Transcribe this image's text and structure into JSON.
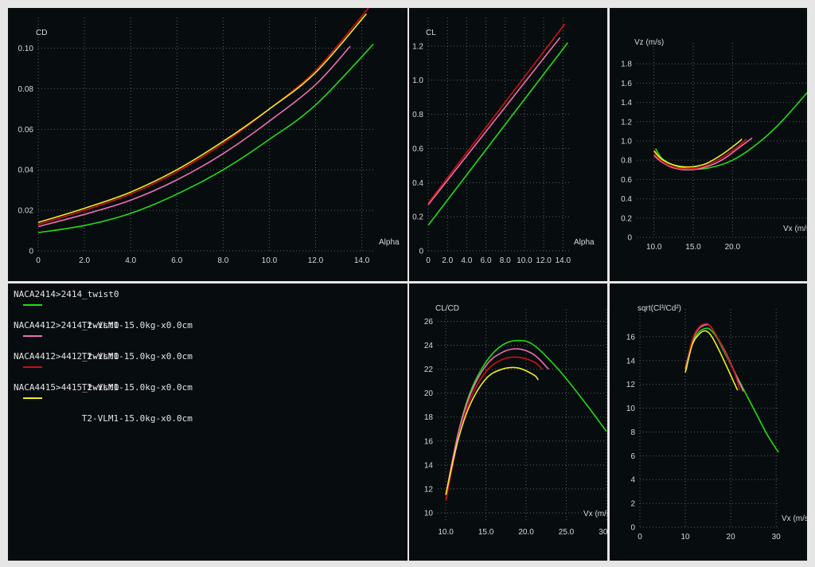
{
  "legend": {
    "items": [
      {
        "title": "NACA2414>2414_twist0",
        "label": "T2-VLM1-15.0kg-x0.0cm",
        "color": "#22dd11"
      },
      {
        "title": "NACA4412>2414_twist0",
        "label": "T2-VLM1-15.0kg-x0.0cm",
        "color": "#ee6fb0"
      },
      {
        "title": "NACA4412>4412_twist0",
        "label": "T2-VLM1-15.0kg-x0.0cm",
        "color": "#cc1111"
      },
      {
        "title": "NACA4415>4415_twist0",
        "label": "T2-VLM1-15.0kg-x0.0cm",
        "color": "#eeee22"
      }
    ]
  },
  "chart_data": [
    {
      "id": "cd",
      "type": "line",
      "title": "",
      "xlabel": "Alpha",
      "ylabel": "CD",
      "xlim": [
        0,
        14.6
      ],
      "ylim": [
        0,
        0.112
      ],
      "xticks": [
        "0",
        "2.0",
        "4.0",
        "6.0",
        "8.0",
        "10.0",
        "12.0",
        "14.0"
      ],
      "xtick_values": [
        0,
        2,
        4,
        6,
        8,
        10,
        12,
        14
      ],
      "yticks": [
        "0",
        "0.02",
        "0.04",
        "0.06",
        "0.08",
        "0.10"
      ],
      "ytick_values": [
        0,
        0.02,
        0.04,
        0.06,
        0.08,
        0.1
      ],
      "grid": true,
      "series": [
        {
          "color": "#22dd11",
          "x": [
            0,
            2,
            4,
            6,
            8,
            10,
            12,
            14.5
          ],
          "y": [
            0.009,
            0.0125,
            0.0185,
            0.028,
            0.04,
            0.055,
            0.072,
            0.102
          ]
        },
        {
          "color": "#ee6fb0",
          "x": [
            0,
            2,
            4,
            6,
            8,
            10,
            12,
            13.5
          ],
          "y": [
            0.012,
            0.018,
            0.025,
            0.035,
            0.048,
            0.064,
            0.082,
            0.101
          ]
        },
        {
          "color": "#cc1111",
          "x": [
            0,
            2,
            4,
            6,
            8,
            10,
            12,
            14.3
          ],
          "y": [
            0.013,
            0.02,
            0.028,
            0.039,
            0.053,
            0.07,
            0.089,
            0.12
          ]
        },
        {
          "color": "#eeee22",
          "x": [
            0,
            2,
            4,
            6,
            8,
            10,
            12,
            14.2
          ],
          "y": [
            0.014,
            0.021,
            0.029,
            0.04,
            0.054,
            0.07,
            0.088,
            0.117
          ]
        }
      ]
    },
    {
      "id": "cl",
      "type": "line",
      "title": "",
      "xlabel": "Alpha",
      "ylabel": "CL",
      "xlim": [
        0,
        14.8
      ],
      "ylim": [
        0,
        1.33
      ],
      "xticks": [
        "0",
        "2.0",
        "4.0",
        "6.0",
        "8.0",
        "10.0",
        "12.0",
        "14.0"
      ],
      "xtick_values": [
        0,
        2,
        4,
        6,
        8,
        10,
        12,
        14
      ],
      "yticks": [
        "0",
        "0.2",
        "0.4",
        "0.6",
        "0.8",
        "1.0",
        "1.2"
      ],
      "ytick_values": [
        0,
        0.2,
        0.4,
        0.6,
        0.8,
        1.0,
        1.2
      ],
      "grid": true,
      "series": [
        {
          "color": "#22dd11",
          "x": [
            0,
            14.5
          ],
          "y": [
            0.15,
            1.22
          ]
        },
        {
          "color": "#ee6fb0",
          "x": [
            0,
            13.7
          ],
          "y": [
            0.27,
            1.25
          ]
        },
        {
          "color": "#cc1111",
          "x": [
            0,
            14.2
          ],
          "y": [
            0.28,
            1.33
          ]
        }
      ]
    },
    {
      "id": "polar",
      "type": "line",
      "title": "",
      "xlabel": "Vx (m/s)",
      "ylabel": "Vz (m/s)",
      "xlim": [
        7.8,
        29.5
      ],
      "ylim": [
        0,
        1.95
      ],
      "xticks": [
        "10.0",
        "15.0",
        "20.0"
      ],
      "xtick_values": [
        10,
        15,
        20
      ],
      "yticks": [
        "0",
        "0.2",
        "0.4",
        "0.6",
        "0.8",
        "1.0",
        "1.2",
        "1.4",
        "1.6",
        "1.8"
      ],
      "ytick_values": [
        0,
        0.2,
        0.4,
        0.6,
        0.8,
        1.0,
        1.2,
        1.4,
        1.6,
        1.8
      ],
      "grid": true,
      "series": [
        {
          "color": "#22dd11",
          "x": [
            10.2,
            11,
            12.5,
            14.5,
            17,
            20,
            23,
            26,
            29.5
          ],
          "y": [
            0.92,
            0.82,
            0.75,
            0.71,
            0.72,
            0.8,
            0.96,
            1.18,
            1.5
          ]
        },
        {
          "color": "#ee6fb0",
          "x": [
            10,
            11,
            12.5,
            14.5,
            17,
            19,
            21,
            22.5
          ],
          "y": [
            0.85,
            0.78,
            0.72,
            0.7,
            0.74,
            0.82,
            0.94,
            1.03
          ]
        },
        {
          "color": "#cc1111",
          "x": [
            10,
            11,
            12.5,
            14.5,
            16.5,
            18.5,
            20.5,
            21.8
          ],
          "y": [
            0.88,
            0.79,
            0.73,
            0.71,
            0.74,
            0.82,
            0.93,
            1.02
          ]
        },
        {
          "color": "#eeee22",
          "x": [
            10,
            11,
            12.5,
            14.5,
            16.5,
            18.5,
            20.5,
            21.2
          ],
          "y": [
            0.9,
            0.81,
            0.75,
            0.73,
            0.76,
            0.85,
            0.97,
            1.02
          ]
        }
      ]
    },
    {
      "id": "glide",
      "type": "line",
      "title": "",
      "xlabel": "Vx (m/s)",
      "ylabel": "CL/CD",
      "xlim": [
        9.0,
        30.0
      ],
      "ylim": [
        9.2,
        26.5
      ],
      "xticks": [
        "10.0",
        "15.0",
        "20.0",
        "25.0",
        "30.0"
      ],
      "xtick_values": [
        10,
        15,
        20,
        25,
        30
      ],
      "yticks": [
        "10",
        "12",
        "14",
        "16",
        "18",
        "20",
        "22",
        "24",
        "26"
      ],
      "ytick_values": [
        10,
        12,
        14,
        16,
        18,
        20,
        22,
        24,
        26
      ],
      "grid": true,
      "series": [
        {
          "color": "#22dd11",
          "x": [
            10.2,
            11.5,
            13,
            15,
            17,
            19,
            21,
            24,
            27,
            30
          ],
          "y": [
            11.8,
            16.5,
            20.0,
            22.6,
            24.0,
            24.4,
            24.0,
            22.0,
            19.5,
            16.8
          ]
        },
        {
          "color": "#ee6fb0",
          "x": [
            10,
            11.5,
            13,
            15,
            17,
            19,
            21,
            22.8
          ],
          "y": [
            11.5,
            16.5,
            19.8,
            22.3,
            23.4,
            23.7,
            23.2,
            22.0
          ]
        },
        {
          "color": "#cc1111",
          "x": [
            10,
            11.5,
            13,
            15,
            17,
            19,
            21,
            22
          ],
          "y": [
            11.0,
            16.0,
            19.4,
            21.8,
            22.8,
            23.0,
            22.6,
            22.0
          ]
        },
        {
          "color": "#eeee22",
          "x": [
            10,
            11.5,
            13,
            15,
            17,
            19,
            21,
            21.5
          ],
          "y": [
            11.5,
            16.0,
            19.0,
            21.2,
            22.0,
            22.1,
            21.5,
            21.1
          ]
        }
      ]
    },
    {
      "id": "sink",
      "type": "line",
      "title": "",
      "xlabel": "Vx (m/s)",
      "ylabel": "sqrt(Cl³/Cd²)",
      "xlim": [
        0,
        30.5
      ],
      "ylim": [
        0,
        17.8
      ],
      "xticks": [
        "0",
        "10",
        "20",
        "30"
      ],
      "xtick_values": [
        0,
        10,
        20,
        30
      ],
      "yticks": [
        "0",
        "2",
        "4",
        "6",
        "8",
        "10",
        "12",
        "14",
        "16"
      ],
      "ytick_values": [
        0,
        2,
        4,
        6,
        8,
        10,
        12,
        14,
        16
      ],
      "grid": true,
      "series": [
        {
          "color": "#22dd11",
          "x": [
            10.2,
            11.5,
            13,
            14.5,
            15.5,
            17,
            19,
            22,
            25,
            28,
            30.5
          ],
          "y": [
            13.2,
            15.4,
            16.4,
            16.7,
            16.6,
            15.9,
            14.4,
            12.2,
            10.0,
            7.8,
            6.3
          ]
        },
        {
          "color": "#ee6fb0",
          "x": [
            10,
            11.5,
            13,
            14.5,
            15.5,
            17,
            19,
            21,
            22.8
          ],
          "y": [
            13.3,
            15.6,
            16.7,
            17.0,
            16.9,
            16.0,
            14.6,
            12.9,
            11.4
          ]
        },
        {
          "color": "#cc1111",
          "x": [
            10,
            11.5,
            13,
            14.5,
            15.5,
            17,
            19,
            21,
            22
          ],
          "y": [
            13.0,
            15.7,
            16.8,
            17.1,
            16.9,
            16.0,
            14.5,
            12.8,
            11.5
          ]
        },
        {
          "color": "#eeee22",
          "x": [
            10,
            11.5,
            13,
            14.3,
            15.5,
            17,
            19,
            21.5
          ],
          "y": [
            13.0,
            15.3,
            16.2,
            16.5,
            16.2,
            15.2,
            13.6,
            11.5
          ]
        }
      ]
    }
  ]
}
